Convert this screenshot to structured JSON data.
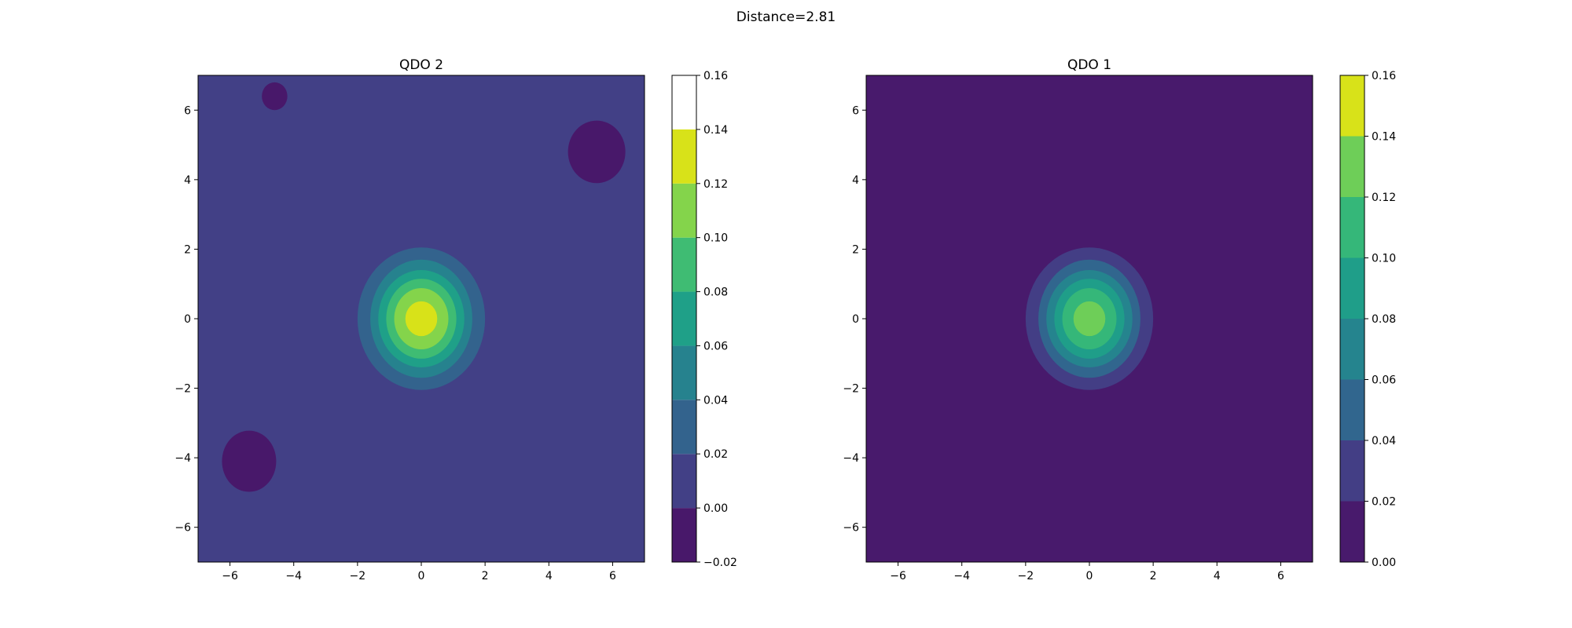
{
  "figure": {
    "title": "Distance=2.81"
  },
  "chart_data": [
    {
      "type": "contour",
      "title": "QDO 2",
      "xlabel": "",
      "ylabel": "",
      "xlim": [
        -7,
        7
      ],
      "ylim": [
        -7,
        7
      ],
      "xticks": [
        -6,
        -4,
        -2,
        0,
        2,
        4,
        6
      ],
      "yticks": [
        -6,
        -4,
        -2,
        0,
        2,
        4,
        6
      ],
      "levels": [
        -0.02,
        0.0,
        0.02,
        0.04,
        0.06,
        0.08,
        0.1,
        0.12,
        0.14,
        0.16
      ],
      "colorbar_ticks": [
        -0.02,
        0.0,
        0.02,
        0.04,
        0.06,
        0.08,
        0.1,
        0.12,
        0.14,
        0.16
      ],
      "level_colors": [
        "#48186a",
        "#424086",
        "#33638d",
        "#26828e",
        "#1fa088",
        "#3fbc73",
        "#84d44b",
        "#d8e219"
      ],
      "peak": {
        "x": 0,
        "y": 0,
        "value": 0.16,
        "rings_x": [
          2.0,
          1.6,
          1.35,
          1.1,
          0.85,
          0.5
        ],
        "rings_y": [
          2.05,
          1.7,
          1.4,
          1.15,
          0.88,
          0.5
        ]
      },
      "negative_regions": [
        {
          "x": -4.6,
          "y": 6.4,
          "rx": 0.4,
          "ry": 0.4
        },
        {
          "x": 5.5,
          "y": 4.8,
          "rx": 0.9,
          "ry": 0.9
        },
        {
          "x": -5.4,
          "y": -4.1,
          "rx": 0.85,
          "ry": 0.88
        }
      ]
    },
    {
      "type": "contour",
      "title": "QDO 1",
      "xlabel": "",
      "ylabel": "",
      "xlim": [
        -7,
        7
      ],
      "ylim": [
        -7,
        7
      ],
      "xticks": [
        -6,
        -4,
        -2,
        0,
        2,
        4,
        6
      ],
      "yticks": [
        -6,
        -4,
        -2,
        0,
        2,
        4,
        6
      ],
      "levels": [
        0.0,
        0.02,
        0.04,
        0.06,
        0.08,
        0.1,
        0.12,
        0.14,
        0.16
      ],
      "colorbar_ticks": [
        0.0,
        0.02,
        0.04,
        0.06,
        0.08,
        0.1,
        0.12,
        0.14,
        0.16
      ],
      "level_colors": [
        "#481a6c",
        "#433e85",
        "#31668e",
        "#25848e",
        "#1f9e89",
        "#35b779",
        "#6ece58",
        "#d8e219"
      ],
      "peak": {
        "x": 0,
        "y": 0,
        "value": 0.16,
        "rings_x": [
          2.0,
          1.6,
          1.35,
          1.1,
          0.85,
          0.5
        ],
        "rings_y": [
          2.05,
          1.7,
          1.4,
          1.15,
          0.88,
          0.5
        ]
      },
      "negative_regions": []
    }
  ]
}
